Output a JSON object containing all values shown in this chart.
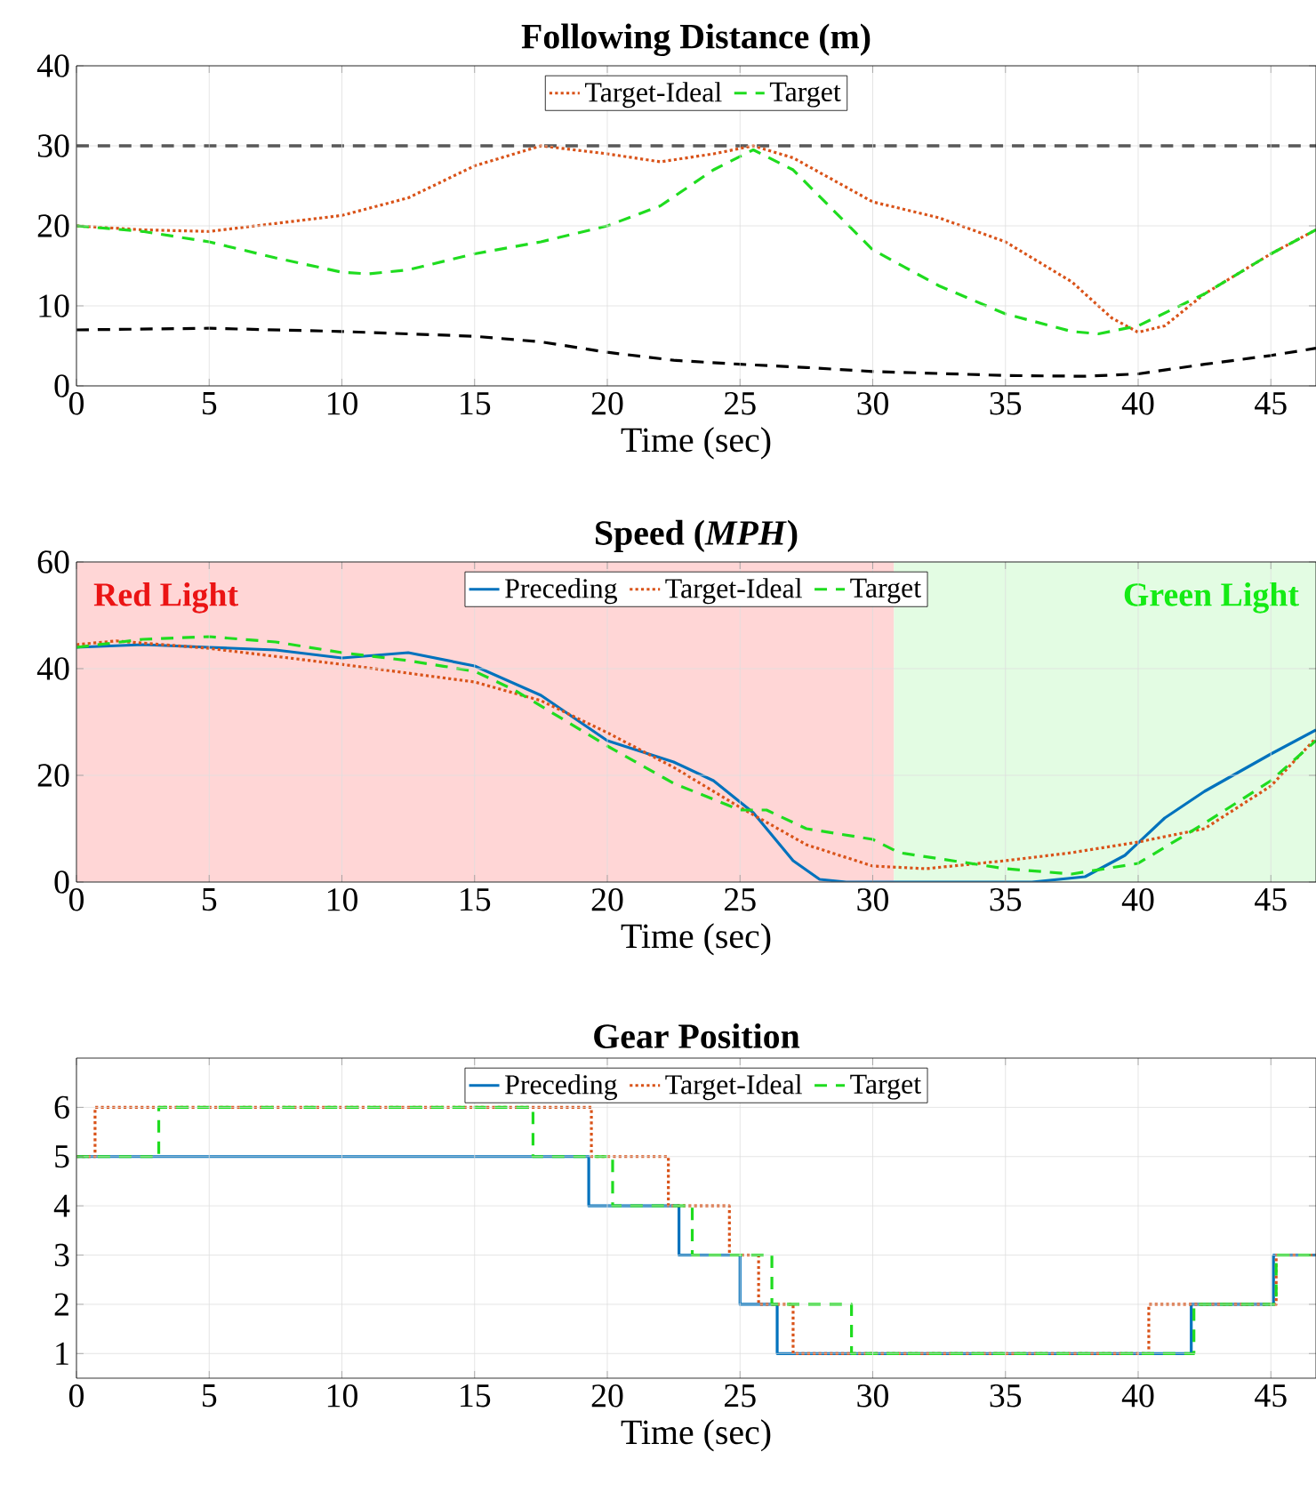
{
  "chart_data": [
    {
      "type": "line",
      "title": "Following Distance (m)",
      "xlabel": "Time (sec)",
      "xlim": [
        0,
        46.7
      ],
      "xticks": [
        0,
        5,
        10,
        15,
        20,
        25,
        30,
        35,
        40,
        45
      ],
      "ylim": [
        0,
        40
      ],
      "yticks": [
        0,
        10,
        20,
        30,
        40
      ],
      "grid": true,
      "legend": "top",
      "ref_lines": [
        {
          "axis": "y",
          "value": 30,
          "color": "#000000",
          "line_style": "dashed"
        }
      ],
      "series": [
        {
          "name": "Target-Ideal",
          "color": "#d95319",
          "line_style": "dotted",
          "x": [
            0,
            2.5,
            5,
            7.5,
            10,
            12.5,
            15,
            17.5,
            20,
            22,
            24,
            25.5,
            27,
            30,
            32.5,
            35,
            37.5,
            39,
            40,
            41,
            42.5,
            45,
            46.7
          ],
          "values": [
            20,
            19.5,
            19.3,
            20.3,
            21.3,
            23.5,
            27.5,
            30,
            29,
            28,
            29,
            30,
            28.5,
            23,
            21,
            18,
            13,
            8.5,
            6.7,
            7.5,
            11.5,
            16.5,
            19.5
          ]
        },
        {
          "name": "Target",
          "color": "#1fdc1f",
          "line_style": "dashed",
          "x": [
            0,
            2.5,
            5,
            7.5,
            10,
            11,
            12.5,
            15,
            17.5,
            20,
            22,
            24,
            25.5,
            27,
            30,
            32.5,
            35,
            37.5,
            38.5,
            40,
            42.5,
            45,
            46.7
          ],
          "values": [
            20,
            19.3,
            18,
            16,
            14.2,
            14,
            14.5,
            16.5,
            18,
            20,
            22.5,
            27,
            29.5,
            27,
            17,
            12.5,
            9,
            6.8,
            6.5,
            7.5,
            11.5,
            16.5,
            19.5
          ]
        },
        {
          "color": "#000000",
          "line_style": "dashed",
          "x": [
            0,
            5,
            10,
            15,
            17.5,
            20,
            22.5,
            25,
            27.5,
            30,
            35,
            38,
            40,
            42.5,
            45,
            46.7
          ],
          "values": [
            7,
            7.2,
            6.8,
            6.2,
            5.5,
            4.2,
            3.2,
            2.7,
            2.3,
            1.8,
            1.3,
            1.2,
            1.5,
            2.7,
            3.8,
            4.7
          ]
        }
      ]
    },
    {
      "type": "line",
      "title": "Speed (*MPH*)",
      "xlabel": "Time (sec)",
      "xlim": [
        0,
        46.7
      ],
      "xticks": [
        0,
        5,
        10,
        15,
        20,
        25,
        30,
        35,
        40,
        45
      ],
      "ylim": [
        0,
        60
      ],
      "yticks": [
        0,
        20,
        40,
        60
      ],
      "grid": true,
      "legend": "top",
      "bands": [
        {
          "axis": "x",
          "from": 0,
          "to": 30.8,
          "label": "Red Light",
          "color": "#ffd6d6"
        },
        {
          "axis": "x",
          "from": 30.8,
          "to": 46.7,
          "label": "Green Light",
          "color": "#e3fce3"
        }
      ],
      "series": [
        {
          "name": "Preceding",
          "color": "#0072bd",
          "line_style": "solid",
          "x": [
            0,
            2.5,
            5,
            7.5,
            10,
            12.5,
            15,
            17.5,
            20,
            22.5,
            24,
            25.5,
            27,
            28,
            29,
            36,
            38,
            39.5,
            41,
            42.5,
            45,
            46.7
          ],
          "values": [
            44,
            44.5,
            44,
            43.5,
            42,
            43,
            40.5,
            35,
            26.5,
            22.5,
            19,
            13,
            4,
            0.5,
            0,
            0,
            1,
            5,
            12,
            17,
            24,
            28.5
          ]
        },
        {
          "name": "Target-Ideal",
          "color": "#d95319",
          "line_style": "dotted",
          "x": [
            0,
            1.5,
            5,
            10,
            15,
            17.5,
            20,
            22.5,
            25,
            27.5,
            30,
            32,
            35,
            37.5,
            40,
            42.5,
            45,
            46.7
          ],
          "values": [
            44.5,
            45.2,
            43.8,
            40.8,
            37.5,
            34,
            28,
            21.5,
            14,
            7,
            3,
            2.5,
            4,
            5.5,
            7.5,
            10,
            18,
            27
          ]
        },
        {
          "name": "Target",
          "color": "#1fdc1f",
          "line_style": "dashed",
          "x": [
            0,
            2.5,
            5,
            7.5,
            10,
            12.5,
            15,
            16.5,
            20,
            22.5,
            25,
            26,
            27.5,
            30,
            31,
            35,
            37.5,
            40,
            42.5,
            45,
            46.7
          ],
          "values": [
            44,
            45.5,
            46,
            45,
            43,
            41.5,
            39.5,
            36,
            25.5,
            18.5,
            13.5,
            13.5,
            10,
            8,
            5.5,
            2.5,
            1.5,
            3.5,
            11,
            19,
            26.5
          ]
        }
      ]
    },
    {
      "type": "step",
      "title": "Gear Position",
      "xlabel": "Time (sec)",
      "xlim": [
        0,
        46.7
      ],
      "xticks": [
        0,
        5,
        10,
        15,
        20,
        25,
        30,
        35,
        40,
        45
      ],
      "ylim": [
        0.5,
        7
      ],
      "yticks": [
        1,
        2,
        3,
        4,
        5,
        6
      ],
      "grid": true,
      "legend": "top",
      "series": [
        {
          "name": "Preceding",
          "color": "#0072bd",
          "line_style": "solid",
          "x": [
            0,
            19.3,
            22.7,
            25,
            26.4,
            42,
            45.1,
            46.7
          ],
          "values": [
            5,
            4,
            3,
            2,
            1,
            2,
            3,
            3
          ]
        },
        {
          "name": "Target-Ideal",
          "color": "#d95319",
          "line_style": "dotted",
          "x": [
            0,
            0.7,
            19.4,
            22.3,
            24.6,
            25.7,
            27,
            40.4,
            45.2,
            46.7
          ],
          "values": [
            5,
            6,
            5,
            4,
            3,
            2,
            1,
            2,
            3,
            3
          ]
        },
        {
          "name": "Target",
          "color": "#1fdc1f",
          "line_style": "dashed",
          "x": [
            0,
            3.1,
            17.2,
            20.2,
            23.2,
            26.2,
            29.2,
            42.1,
            45.2,
            46.7
          ],
          "values": [
            5,
            6,
            5,
            4,
            3,
            2,
            1,
            2,
            3,
            3
          ]
        }
      ]
    }
  ]
}
